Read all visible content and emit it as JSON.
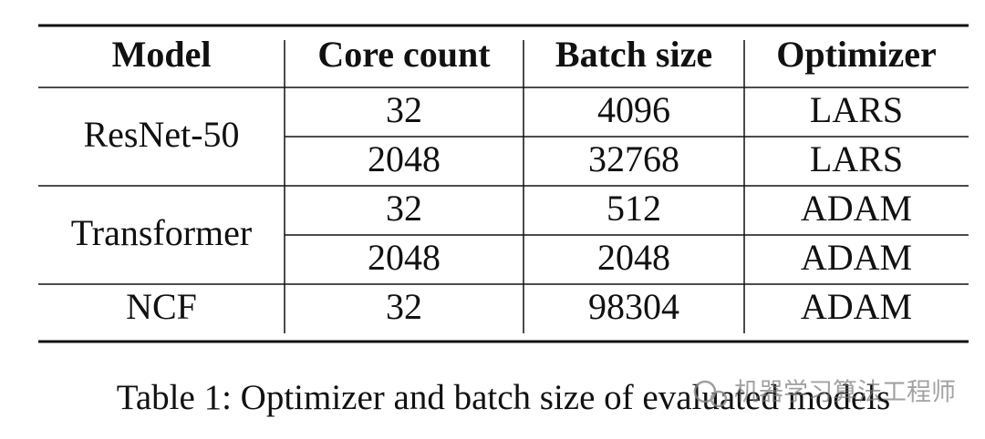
{
  "table": {
    "header": [
      "Model",
      "Core count",
      "Batch size",
      "Optimizer"
    ],
    "groups": [
      {
        "model": "ResNet-50",
        "rows": [
          [
            32,
            4096,
            "LARS"
          ],
          [
            2048,
            32768,
            "LARS"
          ]
        ]
      },
      {
        "model": "Transformer",
        "rows": [
          [
            32,
            512,
            "ADAM"
          ],
          [
            2048,
            2048,
            "ADAM"
          ]
        ]
      },
      {
        "model": "NCF",
        "rows": [
          [
            32,
            98304,
            "ADAM"
          ]
        ]
      }
    ]
  },
  "caption": "Table 1: Optimizer and batch size of evaluated models",
  "watermark": "机器学习算法工程师"
}
